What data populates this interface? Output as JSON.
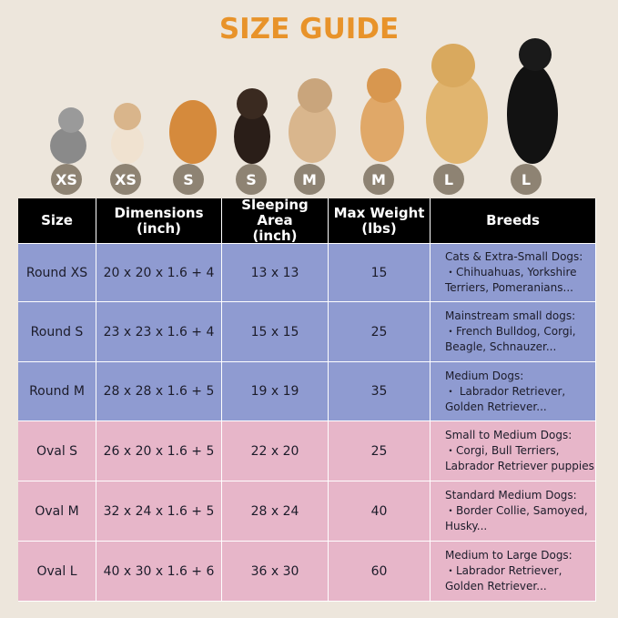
{
  "title": "SIZE GUIDE",
  "badges": [
    "XS",
    "XS",
    "S",
    "S",
    "M",
    "M",
    "L",
    "L"
  ],
  "table": {
    "header": [
      [
        "Size"
      ],
      [
        "Dimensions",
        "(inch)"
      ],
      [
        "Sleeping Area",
        "(inch)"
      ],
      [
        "Max Weight",
        "(lbs)"
      ],
      [
        "Breeds"
      ]
    ],
    "rows": [
      [
        "Round XS",
        "20 x 20 x 1.6 + 4",
        "13 x 13",
        "15",
        [
          "Cats & Extra-Small Dogs:",
          "・Chihuahuas, Yorkshire",
          "Terriers, Pomeranians..."
        ]
      ],
      [
        "Round S",
        "23 x 23 x 1.6 + 4",
        "15 x 15",
        "25",
        [
          "Mainstream small dogs:",
          "・French Bulldog, Corgi,",
          "Beagle, Schnauzer..."
        ]
      ],
      [
        "Round M",
        "28 x 28 x 1.6 + 5",
        "19 x 19",
        "35",
        [
          "Medium Dogs:",
          "・ Labrador Retriever,",
          "Golden Retriever..."
        ]
      ],
      [
        "Oval  S",
        "26 x 20 x 1.6 + 5",
        "22 x 20",
        "25",
        [
          "Small to Medium Dogs:",
          "・Corgi, Bull Terriers,",
          "Labrador Retriever puppies"
        ]
      ],
      [
        "Oval  M",
        "32 x 24 x 1.6 + 5",
        "28 x 24",
        "40",
        [
          "Standard Medium Dogs:",
          "・Border Collie, Samoyed,",
          "Husky..."
        ]
      ],
      [
        "Oval  L",
        "40 x 30 x 1.6 + 6",
        "36 x 30",
        "60",
        [
          "Medium to Large Dogs:",
          "・Labrador Retriever,",
          "Golden Retriever..."
        ]
      ]
    ]
  }
}
